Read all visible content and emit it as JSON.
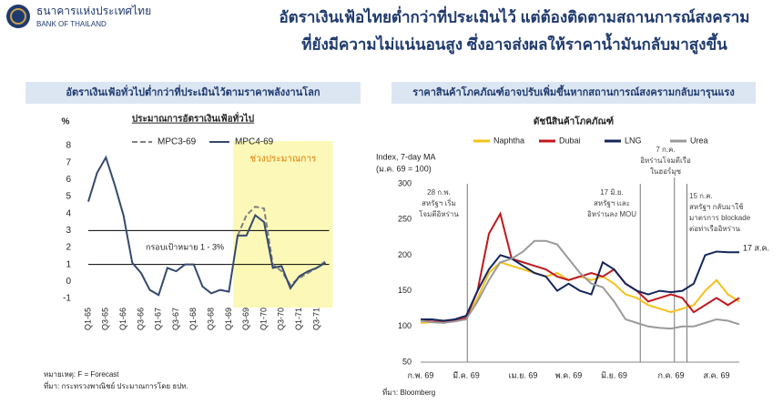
{
  "header": {
    "org_th": "ธนาคารแห่งประเทศไทย",
    "org_en": "BANK OF THAILAND",
    "title": [
      "อัตราเงินเฟ้อไทยต่ำกว่าที่ประเมินไว้ แต่ต้องติดตามสถานการณ์สงคราม",
      "ที่ยังมีความไม่แน่นอนสูง ซึ่งอาจส่งผลให้ราคาน้ำมันกลับมาสูงขึ้น"
    ]
  },
  "panels": [
    {
      "heading": "อัตราเงินเฟ้อทั่วไปต่ำกว่าที่ประเมินไว้ตามราคาพลังงานโลก",
      "notes": [
        "หมายเหตุ: F = Forecast",
        "ที่มา: กระทรวงพาณิชย์ ประมาณการโดย ธปท."
      ]
    },
    {
      "heading": "ราคาสินค้าโภคภัณฑ์อาจปรับเพิ่มขึ้นหากสถานการณ์สงครามกลับมารุนแรง",
      "notes": [
        "ที่มา: Bloomberg"
      ]
    }
  ],
  "chart_data": [
    {
      "type": "line",
      "title": "ประมาณการอัตราเงินเฟ้อทั่วไป",
      "ylabel": "%",
      "categories": [
        "Q1-65",
        null,
        "Q3-65",
        null,
        "Q1-66",
        null,
        "Q3-66",
        null,
        "Q1-67",
        null,
        "Q3-67",
        null,
        "Q1-68",
        null,
        "Q3-68",
        null,
        "Q1-69",
        null,
        "Q3-69",
        null,
        "Q1-70",
        null,
        "Q3-70",
        null,
        "Q1-71",
        null,
        "Q3-71",
        null
      ],
      "series": [
        {
          "name": "MPC3-69",
          "color": "#808080",
          "dash": true,
          "values": [
            null,
            null,
            null,
            null,
            null,
            null,
            null,
            null,
            null,
            null,
            null,
            null,
            null,
            null,
            null,
            null,
            null,
            2.7,
            3.9,
            4.4,
            4.3,
            1.0,
            0.6,
            -0.2,
            0.2,
            0.5,
            0.8,
            1.2
          ]
        },
        {
          "name": "MPC4-69",
          "color": "#34496e",
          "dash": false,
          "values": [
            4.7,
            6.4,
            7.3,
            5.7,
            3.9,
            1.1,
            0.5,
            -0.5,
            -0.8,
            0.8,
            0.6,
            1.0,
            1.0,
            -0.3,
            -0.7,
            -0.5,
            -0.6,
            2.7,
            2.7,
            3.9,
            3.5,
            0.8,
            0.9,
            -0.4,
            0.3,
            0.6,
            0.8,
            1.1
          ]
        }
      ],
      "reference_lines": [
        3,
        1
      ],
      "reference_label": "กรอบเป้าหมาย 1 - 3%",
      "forecast_label": "ช่วงประมาณการ",
      "forecast_color": "#fcf8b8",
      "ylim": [
        -1,
        8
      ],
      "yticks": [
        -1,
        0,
        1,
        2,
        3,
        4,
        5,
        6,
        7,
        8
      ]
    },
    {
      "type": "line",
      "title": "ดัชนีสินค้าโภคภัณฑ์",
      "ylabel": [
        "Index, 7-day MA",
        "(ม.ค. 69 = 100)"
      ],
      "categories": [
        "ก.พ. 69",
        null,
        null,
        null,
        "มี.ค. 69",
        null,
        null,
        null,
        null,
        "เม.ย. 69",
        null,
        null,
        null,
        "พ.ค. 69",
        null,
        null,
        null,
        "มิ.ย. 69",
        null,
        null,
        null,
        null,
        "ก.ค. 69",
        null,
        null,
        null,
        "ส.ค. 69",
        null,
        null
      ],
      "series": [
        {
          "name": "Naphtha",
          "color": "#f2c21b",
          "values": [
            105,
            106,
            107,
            108,
            110,
            140,
            175,
            190,
            185,
            180,
            175,
            170,
            175,
            165,
            170,
            165,
            170,
            160,
            145,
            140,
            130,
            125,
            120,
            125,
            130,
            150,
            165,
            145,
            135
          ]
        },
        {
          "name": "Dubai",
          "color": "#c0181f",
          "values": [
            108,
            107,
            106,
            108,
            112,
            150,
            230,
            258,
            195,
            190,
            185,
            180,
            170,
            165,
            170,
            175,
            170,
            180,
            160,
            150,
            135,
            140,
            145,
            140,
            120,
            130,
            140,
            130,
            140
          ]
        },
        {
          "name": "LNG",
          "color": "#14265c",
          "values": [
            110,
            110,
            108,
            110,
            115,
            150,
            180,
            200,
            195,
            185,
            175,
            170,
            150,
            160,
            150,
            145,
            190,
            180,
            160,
            150,
            145,
            150,
            148,
            150,
            160,
            200,
            205,
            204,
            204
          ]
        },
        {
          "name": "Urea",
          "color": "#9a9a9a",
          "values": [
            108,
            106,
            105,
            107,
            110,
            135,
            165,
            190,
            195,
            205,
            220,
            220,
            215,
            195,
            175,
            160,
            155,
            135,
            110,
            105,
            100,
            98,
            97,
            100,
            100,
            105,
            110,
            108,
            103
          ]
        }
      ],
      "end_label": "17 ส.ค.",
      "events": [
        [
          "28 ก.พ.",
          "สหรัฐฯ เริ่ม",
          "โจมตีอิหร่าน"
        ],
        [
          "17 มิ.ย.",
          "สหรัฐฯ และ",
          "อิหร่านลง MOU"
        ],
        [
          "7 ก.ค.",
          "อิหร่านโจมตีเรือ",
          "ในฮอร์มุซ"
        ],
        [
          "15 ก.ค.",
          "สหรัฐฯ กลับมาใช้",
          "มาตรการ blockade",
          "ต่อท่าเรืออิหร่าน"
        ]
      ],
      "ylim": [
        50,
        300
      ],
      "yticks": [
        50,
        100,
        150,
        200,
        250,
        300
      ]
    }
  ]
}
